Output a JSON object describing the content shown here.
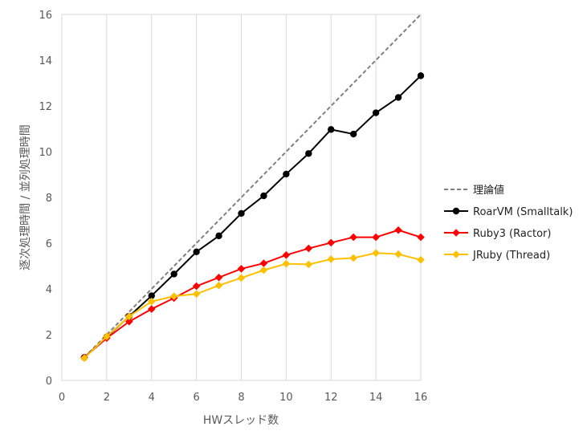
{
  "chart_data": {
    "type": "line",
    "title": "",
    "xlabel": "HWスレッド数",
    "ylabel": "逐次処理時間 / 並列処理時間",
    "xlim": [
      0,
      16
    ],
    "ylim": [
      0,
      16
    ],
    "x_ticks": [
      0,
      2,
      4,
      6,
      8,
      10,
      12,
      14,
      16
    ],
    "y_ticks": [
      0,
      2,
      4,
      6,
      8,
      10,
      12,
      14,
      16
    ],
    "grid": "vertical",
    "legend_position": "right",
    "series": [
      {
        "name": "理論値",
        "color": "#808080",
        "dash": true,
        "marker": "none",
        "x": [
          1,
          16
        ],
        "y": [
          1,
          16
        ]
      },
      {
        "name": "RoarVM (Smalltalk)",
        "color": "#000000",
        "marker": "circle",
        "x": [
          1,
          2,
          3,
          4,
          5,
          6,
          7,
          8,
          9,
          10,
          11,
          12,
          13,
          14,
          15,
          16
        ],
        "y": [
          1.0,
          1.9,
          2.8,
          3.7,
          4.65,
          5.62,
          6.32,
          7.3,
          8.07,
          9.02,
          9.92,
          10.97,
          10.77,
          11.7,
          12.37,
          13.32
        ]
      },
      {
        "name": "Ruby3 (Ractor)",
        "color": "#ff0000",
        "marker": "diamond",
        "x": [
          1,
          2,
          3,
          4,
          5,
          6,
          7,
          8,
          9,
          10,
          11,
          12,
          13,
          14,
          15,
          16
        ],
        "y": [
          1.0,
          1.85,
          2.57,
          3.12,
          3.6,
          4.12,
          4.5,
          4.88,
          5.12,
          5.48,
          5.77,
          6.02,
          6.26,
          6.26,
          6.57,
          6.26
        ]
      },
      {
        "name": "JRuby (Thread)",
        "color": "#ffc000",
        "marker": "diamond",
        "x": [
          1,
          2,
          3,
          4,
          5,
          6,
          7,
          8,
          9,
          10,
          11,
          12,
          13,
          14,
          15,
          16
        ],
        "y": [
          0.97,
          1.92,
          2.8,
          3.45,
          3.68,
          3.78,
          4.15,
          4.48,
          4.82,
          5.1,
          5.07,
          5.3,
          5.35,
          5.57,
          5.52,
          5.27
        ]
      }
    ]
  }
}
